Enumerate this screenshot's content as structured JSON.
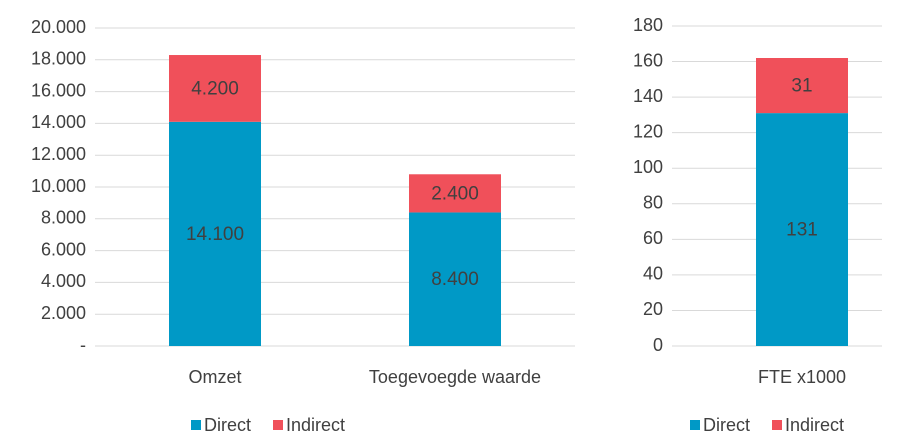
{
  "chart_data": [
    {
      "type": "bar",
      "stacked": true,
      "categories": [
        "Omzet",
        "Toegevoegde waarde"
      ],
      "series": [
        {
          "name": "Direct",
          "color": "#0099c6",
          "values": [
            14100,
            8400
          ],
          "value_labels": [
            "14.100",
            "8.400"
          ]
        },
        {
          "name": "Indirect",
          "color": "#f0505a",
          "values": [
            4200,
            2400
          ],
          "value_labels": [
            "4.200",
            "2.400"
          ]
        }
      ],
      "ylim": [
        0,
        20000
      ],
      "yticks": [
        {
          "value": 0,
          "label": "-"
        },
        {
          "value": 2000,
          "label": "2.000"
        },
        {
          "value": 4000,
          "label": "4.000"
        },
        {
          "value": 6000,
          "label": "6.000"
        },
        {
          "value": 8000,
          "label": "8.000"
        },
        {
          "value": 10000,
          "label": "10.000"
        },
        {
          "value": 12000,
          "label": "12.000"
        },
        {
          "value": 14000,
          "label": "14.000"
        },
        {
          "value": 16000,
          "label": "16.000"
        },
        {
          "value": 18000,
          "label": "18.000"
        },
        {
          "value": 20000,
          "label": "20.000"
        }
      ],
      "grid": true,
      "legend": "bottom"
    },
    {
      "type": "bar",
      "stacked": true,
      "categories": [
        "FTE x1000"
      ],
      "series": [
        {
          "name": "Direct",
          "color": "#0099c6",
          "values": [
            131
          ]
        },
        {
          "name": "Indirect",
          "color": "#f0505a",
          "values": [
            31
          ]
        }
      ],
      "ylim": [
        0,
        180
      ],
      "yticks": [
        0,
        20,
        40,
        60,
        80,
        100,
        120,
        140,
        160,
        180
      ],
      "grid": true,
      "legend": "bottom"
    }
  ]
}
